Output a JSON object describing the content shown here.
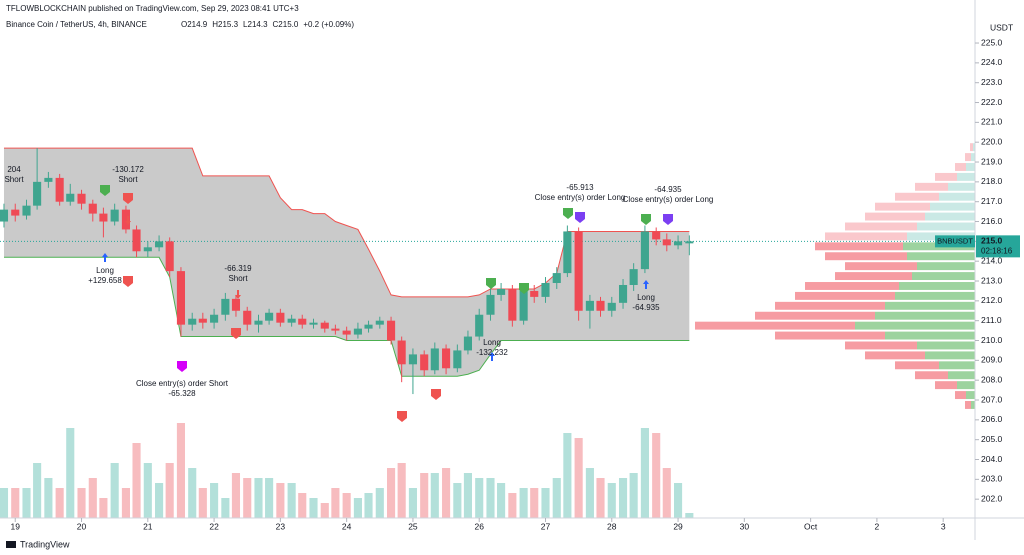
{
  "header": {
    "publisher": "TFLOWBLOCKCHAIN published on TradingView.com, Sep 29, 2023 08:41 UTC+3",
    "symbol": "Binance Coin / TetherUS, 4h, BINANCE",
    "ohlc": [
      "O214.9",
      "H215.3",
      "L214.3",
      "C215.0",
      "+0.2 (+0.09%)"
    ]
  },
  "footer": {
    "brand": "TradingView"
  },
  "chart_data": {
    "type": "candlestick",
    "currency": "USDT",
    "up_color": "#3fa58f",
    "down_color": "#ef4a55",
    "up_volume_color": "#b3e0da",
    "down_volume_color": "#f7bcbf",
    "channel_fill": "#c4c4c4",
    "channel_upper_color": "#ef5350",
    "channel_lower_color": "#4caf50",
    "xlim": [
      18.77,
      33.48
    ],
    "xticks": [
      19,
      20,
      21,
      22,
      23,
      24,
      25,
      26,
      27,
      28,
      29,
      30,
      {
        "value": 31,
        "label": "Oct"
      },
      {
        "value": 32,
        "label": "2"
      },
      {
        "value": 33,
        "label": "3"
      }
    ],
    "ylim": [
      200.95,
      227.17
    ],
    "yticks": [
      {
        "value": 202,
        "label": "202.0"
      },
      {
        "value": 203,
        "label": "203.0"
      },
      {
        "value": 204,
        "label": "204.0"
      },
      {
        "value": 205,
        "label": "205.0"
      },
      {
        "value": 206,
        "label": "206.0"
      },
      {
        "value": 207,
        "label": "207.0"
      },
      {
        "value": 208,
        "label": "208.0"
      },
      {
        "value": 209,
        "label": "209.0"
      },
      {
        "value": 210,
        "label": "210.0"
      },
      {
        "value": 211,
        "label": "211.0"
      },
      {
        "value": 212,
        "label": "212.0"
      },
      {
        "value": 213,
        "label": "213.0"
      },
      {
        "value": 214,
        "label": "214.0"
      },
      {
        "value": 215,
        "label": "215.0"
      },
      {
        "value": 216,
        "label": "216.0"
      },
      {
        "value": 217,
        "label": "217.0"
      },
      {
        "value": 218,
        "label": "218.0"
      },
      {
        "value": 219,
        "label": "219.0"
      },
      {
        "value": 220,
        "label": "220.0"
      },
      {
        "value": 221,
        "label": "221.0"
      },
      {
        "value": 222,
        "label": "222.0"
      },
      {
        "value": 223,
        "label": "223.0"
      },
      {
        "value": 224,
        "label": "224.0"
      },
      {
        "value": 225,
        "label": "225.0"
      }
    ],
    "x": [
      18.83,
      19,
      19.17,
      19.33,
      19.5,
      19.67,
      19.83,
      20,
      20.17,
      20.33,
      20.5,
      20.67,
      20.83,
      21,
      21.17,
      21.33,
      21.5,
      21.67,
      21.83,
      22,
      22.17,
      22.33,
      22.5,
      22.67,
      22.83,
      23,
      23.17,
      23.33,
      23.5,
      23.67,
      23.83,
      24,
      24.17,
      24.33,
      24.5,
      24.67,
      24.83,
      25,
      25.17,
      25.33,
      25.5,
      25.67,
      25.83,
      26,
      26.17,
      26.33,
      26.5,
      26.67,
      26.83,
      27,
      27.17,
      27.33,
      27.5,
      27.67,
      27.83,
      28,
      28.17,
      28.33,
      28.5,
      28.67,
      28.83,
      29,
      29.17
    ],
    "open": [
      216.0,
      216.6,
      216.3,
      216.8,
      218.0,
      218.2,
      217.0,
      217.4,
      216.9,
      216.4,
      216.0,
      216.6,
      215.6,
      214.5,
      214.7,
      215.0,
      213.5,
      210.8,
      211.1,
      210.9,
      211.3,
      212.1,
      211.5,
      210.8,
      211.0,
      211.4,
      210.9,
      211.1,
      210.8,
      210.9,
      210.6,
      210.5,
      210.3,
      210.6,
      210.8,
      211.0,
      210.0,
      208.8,
      209.3,
      208.5,
      209.6,
      208.6,
      209.5,
      210.2,
      211.3,
      212.3,
      212.6,
      211.0,
      212.5,
      212.2,
      212.9,
      213.4,
      215.5,
      211.5,
      212.0,
      211.5,
      211.9,
      212.8,
      213.6,
      215.5,
      215.1,
      214.8,
      214.9
    ],
    "high": [
      216.9,
      216.9,
      217.1,
      219.7,
      218.5,
      218.4,
      217.9,
      217.6,
      217.1,
      216.7,
      216.9,
      216.8,
      215.8,
      215.0,
      215.3,
      215.2,
      213.7,
      211.4,
      211.4,
      211.6,
      212.4,
      212.3,
      211.7,
      211.3,
      211.6,
      211.6,
      211.3,
      211.3,
      211.1,
      211.0,
      210.8,
      210.7,
      210.9,
      211.0,
      211.2,
      211.2,
      210.2,
      209.6,
      209.5,
      209.9,
      209.8,
      209.8,
      210.5,
      211.6,
      212.6,
      212.9,
      212.8,
      212.8,
      212.8,
      213.2,
      213.7,
      215.8,
      215.7,
      212.3,
      212.2,
      212.2,
      213.1,
      213.9,
      215.8,
      215.7,
      215.4,
      215.3,
      215.3
    ],
    "low": [
      215.7,
      216.0,
      216.1,
      216.6,
      217.7,
      216.8,
      216.8,
      216.6,
      216.0,
      215.2,
      215.8,
      215.4,
      214.2,
      214.2,
      214.5,
      213.2,
      210.2,
      210.5,
      210.6,
      210.6,
      211.0,
      211.2,
      210.5,
      210.4,
      210.8,
      210.7,
      210.7,
      210.6,
      210.6,
      210.4,
      210.3,
      210.0,
      210.1,
      210.4,
      210.6,
      209.8,
      207.9,
      207.3,
      208.2,
      208.3,
      208.3,
      208.4,
      209.3,
      210.0,
      211.0,
      212.0,
      210.7,
      210.8,
      211.9,
      211.9,
      212.6,
      213.2,
      211.0,
      210.6,
      211.2,
      211.2,
      211.6,
      212.5,
      213.4,
      214.8,
      214.5,
      214.6,
      214.3
    ],
    "close": [
      216.6,
      216.3,
      216.8,
      218.0,
      218.2,
      217.0,
      217.4,
      216.9,
      216.4,
      216.0,
      216.6,
      215.6,
      214.5,
      214.7,
      215.0,
      213.5,
      210.8,
      211.1,
      210.9,
      211.3,
      212.1,
      211.5,
      210.8,
      211.0,
      211.4,
      210.9,
      211.1,
      210.8,
      210.9,
      210.6,
      210.5,
      210.3,
      210.6,
      210.8,
      211.0,
      210.0,
      208.8,
      209.3,
      208.5,
      209.6,
      208.6,
      209.5,
      210.2,
      211.3,
      212.3,
      212.6,
      211.0,
      212.5,
      212.2,
      212.9,
      213.4,
      215.5,
      211.5,
      212.0,
      211.5,
      211.9,
      212.8,
      213.6,
      215.5,
      215.1,
      214.8,
      215.0,
      215.0
    ],
    "volume": [
      30,
      30,
      30,
      55,
      40,
      30,
      90,
      30,
      40,
      20,
      55,
      30,
      75,
      55,
      35,
      55,
      95,
      50,
      30,
      35,
      20,
      45,
      40,
      40,
      40,
      35,
      35,
      25,
      20,
      15,
      30,
      25,
      20,
      25,
      30,
      50,
      55,
      30,
      45,
      45,
      50,
      35,
      45,
      40,
      40,
      35,
      25,
      30,
      30,
      30,
      40,
      85,
      80,
      50,
      40,
      35,
      40,
      45,
      90,
      85,
      50,
      35,
      5
    ],
    "channel_upper": [
      219.7,
      219.7,
      219.7,
      219.7,
      219.7,
      219.7,
      219.7,
      219.7,
      219.7,
      219.7,
      219.7,
      219.7,
      219.7,
      219.7,
      219.7,
      219.7,
      219.7,
      219.7,
      218.3,
      218.3,
      218.3,
      218.3,
      218.3,
      218.3,
      218.3,
      217.2,
      216.6,
      216.6,
      216.4,
      216.4,
      216.0,
      215.8,
      215.6,
      214.6,
      213.5,
      212.3,
      212.2,
      212.2,
      212.2,
      212.2,
      212.2,
      212.2,
      212.2,
      212.3,
      212.6,
      212.6,
      212.6,
      212.6,
      212.6,
      212.9,
      213.4,
      215.5,
      215.5,
      215.5,
      215.5,
      215.5,
      215.5,
      215.5,
      215.5,
      215.5,
      215.5,
      215.5,
      215.5
    ],
    "channel_lower": [
      214.2,
      214.2,
      214.2,
      214.2,
      214.2,
      214.2,
      214.2,
      214.2,
      214.2,
      214.2,
      214.2,
      214.2,
      214.2,
      214.2,
      214.2,
      213.2,
      210.2,
      210.2,
      210.2,
      210.2,
      210.2,
      210.2,
      210.2,
      210.2,
      210.2,
      210.2,
      210.2,
      210.2,
      210.2,
      210.2,
      210.2,
      210.0,
      210.0,
      210.0,
      210.0,
      210.0,
      208.2,
      208.2,
      208.2,
      208.2,
      208.2,
      208.2,
      208.3,
      208.5,
      209.3,
      210.0,
      210.0,
      210.0,
      210.0,
      210.0,
      210.0,
      210.0,
      210.0,
      210.0,
      210.0,
      210.0,
      210.0,
      210.0,
      210.0,
      210.0,
      210.0,
      210.0,
      210.0
    ],
    "profile_levels": [
      206.75,
      207.25,
      207.75,
      208.25,
      208.75,
      209.25,
      209.75,
      210.25,
      210.75,
      211.25,
      211.75,
      212.25,
      212.75,
      213.25,
      213.75,
      214.25,
      214.75,
      215.25,
      215.75,
      216.25,
      216.75,
      217.25,
      217.75,
      218.25,
      218.75,
      219.25,
      219.75
    ],
    "profile_up": [
      4,
      9,
      18,
      27,
      36,
      50,
      58,
      90,
      120,
      100,
      90,
      80,
      76,
      63,
      58,
      68,
      72,
      68,
      58,
      50,
      45,
      36,
      27,
      18,
      9,
      4,
      2
    ],
    "profile_down": [
      6,
      11,
      22,
      33,
      44,
      60,
      72,
      110,
      160,
      120,
      110,
      100,
      94,
      77,
      72,
      82,
      88,
      82,
      72,
      60,
      55,
      44,
      33,
      22,
      11,
      6,
      3
    ],
    "price_tag": {
      "symbol": "BNBUSDT",
      "value": 215.0,
      "label": "215.0",
      "countdown": "02:18:16",
      "color": "#26a69a"
    },
    "annotations": [
      {
        "lines": [
          "204",
          "Short"
        ]
      },
      {
        "lines": [
          "-130.172",
          "Short"
        ]
      },
      {
        "lines": [
          "Long",
          "+129.658"
        ]
      },
      {
        "lines": [
          "-66.319",
          "Short"
        ]
      },
      {
        "lines": [
          "Close entry(s) order Short",
          "-65.328"
        ]
      },
      {
        "lines": [
          "Long",
          "-132.232"
        ]
      },
      {
        "lines": [
          "-65.913",
          "Close entry(s) order Long"
        ]
      },
      {
        "lines": [
          "-64.935",
          "Close entry(s) order Long"
        ]
      },
      {
        "lines": [
          "Long",
          "-64.935"
        ]
      }
    ]
  }
}
